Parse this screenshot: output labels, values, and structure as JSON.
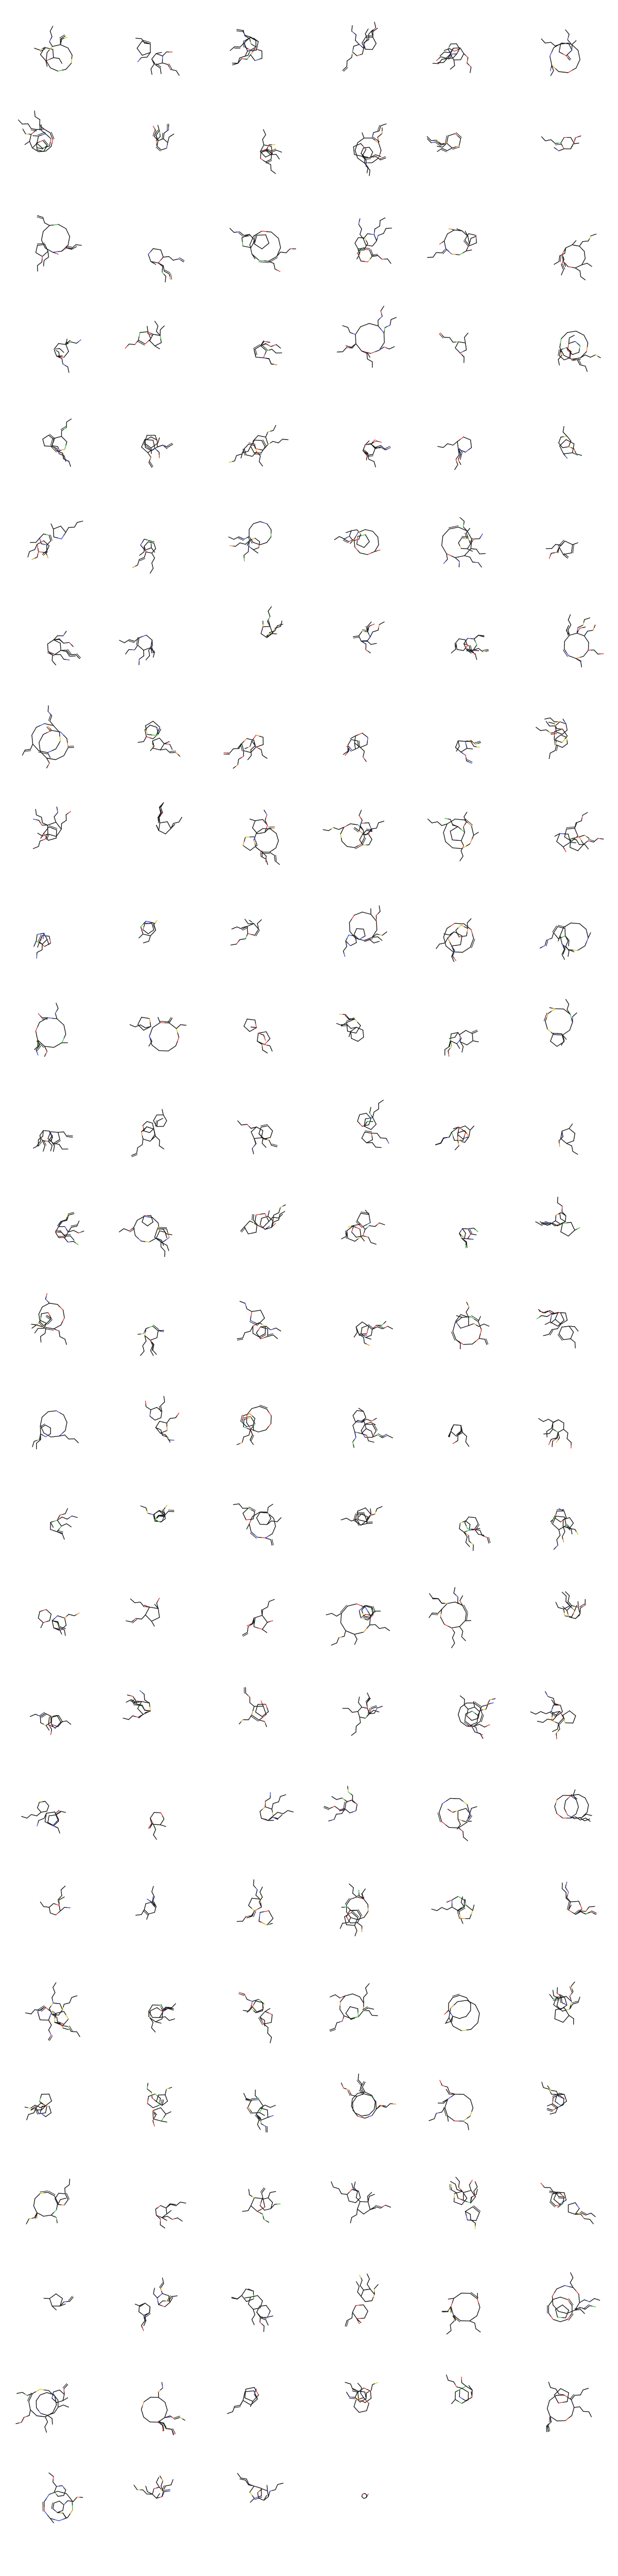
{
  "grid": {
    "columns": 6,
    "rows": 26,
    "molecule_count": 154,
    "last_row_count": 4
  },
  "atom_colors": {
    "carbon_bond": "#1a1a1a",
    "oxygen": "#e8322e",
    "nitrogen": "#3a4cf0",
    "sulfur": "#d9c21a",
    "fluorine": "#39c23a",
    "phosphorus": "#f08a1f",
    "chlorine": "#2ab52a"
  },
  "molecule_style": {
    "rings": 2,
    "chains": 5,
    "heteroatom_mix": [
      "oxygen",
      "nitrogen",
      "oxygen",
      "sulfur",
      "nitrogen",
      "oxygen",
      "fluorine",
      "phosphorus"
    ]
  }
}
